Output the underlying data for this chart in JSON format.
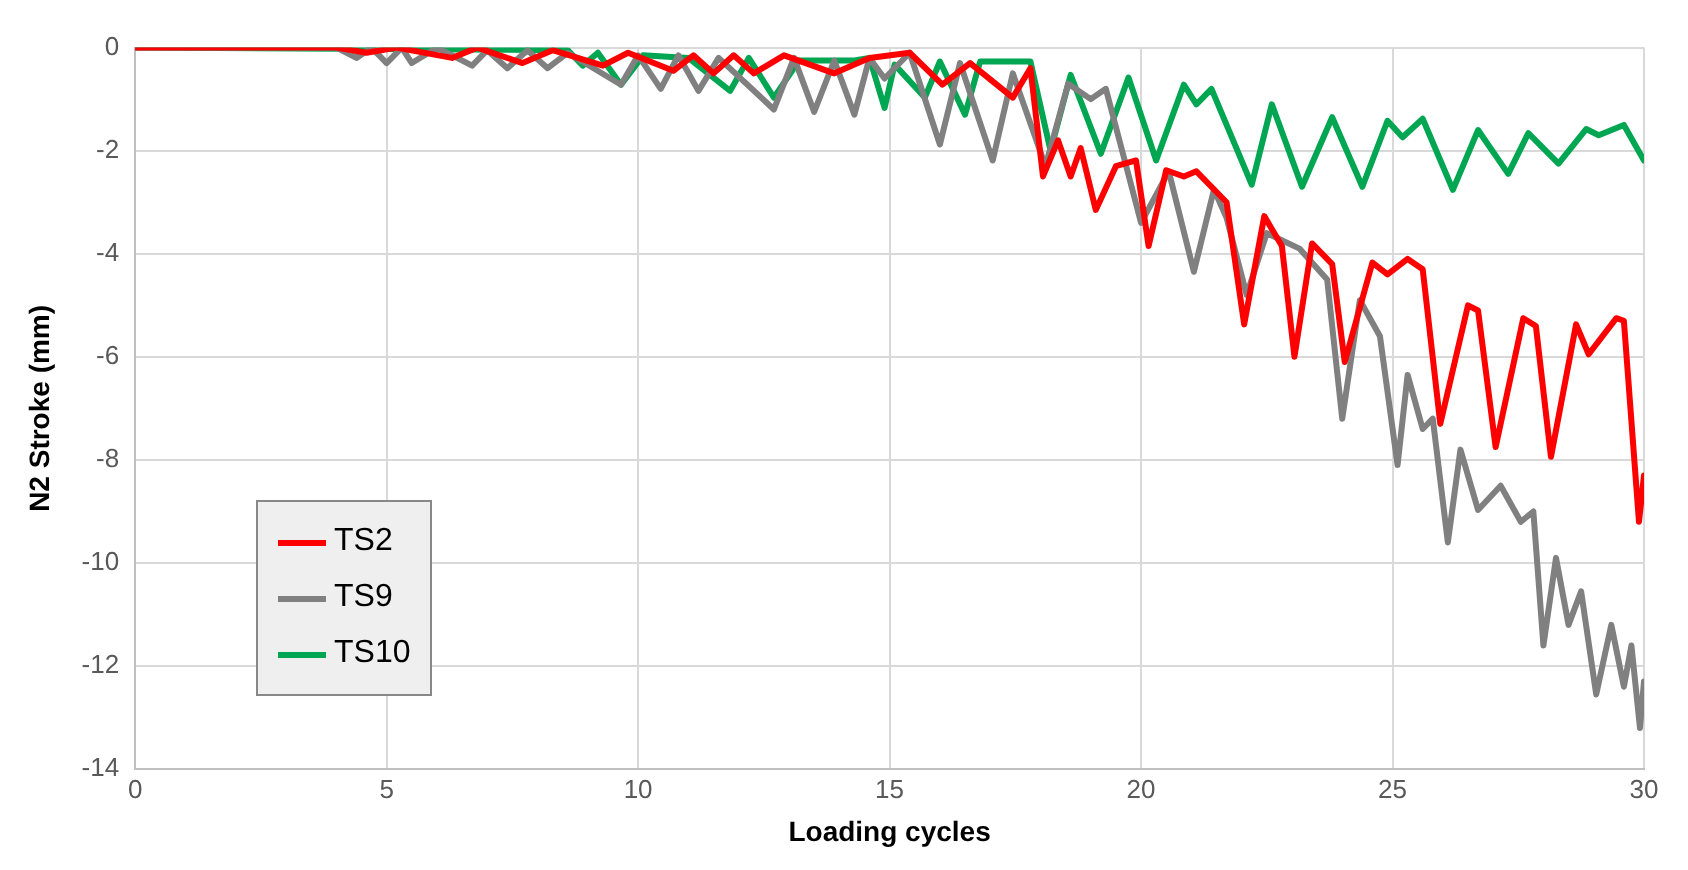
{
  "chart_data": {
    "type": "line",
    "xlabel": "Loading cycles",
    "ylabel": "N2 Stroke (mm)",
    "xlim": [
      0,
      30
    ],
    "xticks": [
      0,
      5,
      10,
      15,
      20,
      25,
      30
    ],
    "ylim": [
      -14,
      0
    ],
    "yticks": [
      -14,
      -12,
      -10,
      -8,
      -6,
      -4,
      -2,
      0
    ],
    "grid": true,
    "legend": "bottom left",
    "marker": "none",
    "line_style": "solid",
    "series": [
      {
        "name": "TS2",
        "color": "#ff0000",
        "x": [
          0,
          4,
          4.6,
          5.2,
          6.3,
          6.8,
          7.7,
          8.3,
          9.3,
          9.8,
          10.7,
          11.1,
          11.5,
          11.9,
          12.3,
          12.9,
          13.9,
          14.6,
          15.4,
          16.05,
          16.6,
          17.45,
          17.8,
          18.05,
          18.35,
          18.6,
          18.8,
          19.1,
          19.5,
          19.9,
          20.15,
          20.5,
          20.85,
          21.1,
          21.7,
          22.05,
          22.45,
          22.8,
          23.05,
          23.4,
          23.8,
          24.05,
          24.6,
          24.9,
          25.3,
          25.6,
          25.95,
          26.5,
          26.7,
          27.05,
          27.6,
          27.85,
          28.15,
          28.65,
          28.9,
          29.45,
          29.6,
          29.9,
          30
        ],
        "values": [
          0,
          0,
          -0.1,
          0,
          -0.2,
          0,
          -0.3,
          -0.05,
          -0.35,
          -0.1,
          -0.45,
          -0.15,
          -0.5,
          -0.15,
          -0.5,
          -0.15,
          -0.5,
          -0.2,
          -0.1,
          -0.72,
          -0.3,
          -0.97,
          -0.4,
          -2.5,
          -1.8,
          -2.5,
          -1.95,
          -3.15,
          -2.3,
          -2.19,
          -3.85,
          -2.38,
          -2.5,
          -2.4,
          -3.0,
          -5.37,
          -3.27,
          -3.85,
          -6.0,
          -3.8,
          -4.2,
          -6.1,
          -4.17,
          -4.4,
          -4.1,
          -4.3,
          -7.3,
          -5.0,
          -5.1,
          -7.75,
          -5.25,
          -5.4,
          -7.94,
          -5.37,
          -5.95,
          -5.25,
          -5.3,
          -9.2,
          -8.3
        ]
      },
      {
        "name": "TS9",
        "color": "#808080",
        "x": [
          0,
          4,
          4.4,
          4.7,
          5.0,
          5.3,
          5.5,
          6.0,
          6.7,
          7.0,
          7.4,
          7.8,
          8.2,
          8.6,
          9.66,
          10.0,
          10.45,
          10.8,
          11.2,
          11.6,
          12.7,
          13.1,
          13.5,
          13.9,
          14.3,
          14.6,
          14.9,
          15.4,
          16.0,
          16.4,
          17.05,
          17.45,
          18.1,
          18.55,
          19.0,
          19.3,
          20.0,
          20.55,
          21.05,
          21.45,
          21.7,
          22.1,
          22.5,
          23.15,
          23.7,
          24.0,
          24.35,
          24.75,
          25.1,
          25.3,
          25.6,
          25.8,
          26.1,
          26.35,
          26.7,
          27.15,
          27.55,
          27.8,
          28.0,
          28.25,
          28.5,
          28.75,
          29.05,
          29.35,
          29.6,
          29.75,
          29.92,
          30
        ],
        "values": [
          0,
          0,
          -0.2,
          0,
          -0.3,
          0,
          -0.3,
          0,
          -0.35,
          -0.05,
          -0.4,
          -0.05,
          -0.4,
          -0.1,
          -0.72,
          -0.15,
          -0.8,
          -0.15,
          -0.84,
          -0.2,
          -1.2,
          -0.2,
          -1.25,
          -0.25,
          -1.3,
          -0.2,
          -0.6,
          -0.1,
          -1.88,
          -0.3,
          -2.19,
          -0.5,
          -2.3,
          -0.7,
          -1.0,
          -0.8,
          -3.4,
          -2.4,
          -4.35,
          -2.75,
          -3.3,
          -4.8,
          -3.6,
          -3.9,
          -4.5,
          -7.2,
          -4.9,
          -5.6,
          -8.1,
          -6.35,
          -7.4,
          -7.2,
          -9.6,
          -7.8,
          -8.97,
          -8.5,
          -9.2,
          -9.0,
          -11.6,
          -9.9,
          -11.2,
          -10.55,
          -12.55,
          -11.2,
          -12.4,
          -11.6,
          -13.2,
          -12.3
        ]
      },
      {
        "name": "TS10",
        "color": "#00a651",
        "x": [
          0,
          8.6,
          8.9,
          9.2,
          9.66,
          10.1,
          11.0,
          11.83,
          12.2,
          12.7,
          13.2,
          14.3,
          14.6,
          14.9,
          15.1,
          15.7,
          16.0,
          16.5,
          16.8,
          17.25,
          17.8,
          18.2,
          18.6,
          19.2,
          19.75,
          20.3,
          20.85,
          21.1,
          21.4,
          22.2,
          22.6,
          23.2,
          23.8,
          24.4,
          24.9,
          25.2,
          25.6,
          26.2,
          26.7,
          27.3,
          27.7,
          28.3,
          28.85,
          29.1,
          29.6,
          30
        ],
        "values": [
          0,
          -0.05,
          -0.35,
          -0.1,
          -0.72,
          -0.15,
          -0.2,
          -0.84,
          -0.2,
          -0.97,
          -0.25,
          -0.25,
          -0.2,
          -1.17,
          -0.33,
          -0.97,
          -0.27,
          -1.3,
          -0.27,
          -0.27,
          -0.27,
          -2.0,
          -0.53,
          -2.06,
          -0.58,
          -2.19,
          -0.72,
          -1.1,
          -0.8,
          -2.66,
          -1.1,
          -2.7,
          -1.35,
          -2.7,
          -1.42,
          -1.74,
          -1.38,
          -2.76,
          -1.6,
          -2.45,
          -1.66,
          -2.25,
          -1.58,
          -1.7,
          -1.5,
          -2.19
        ]
      }
    ]
  }
}
